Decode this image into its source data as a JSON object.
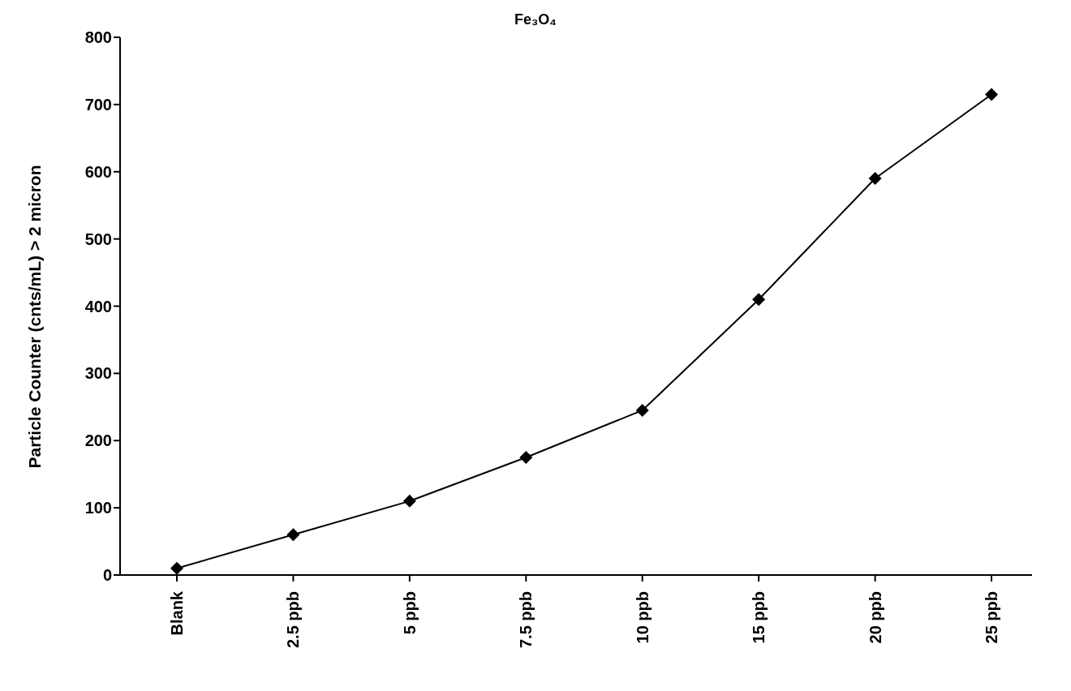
{
  "chart_data": {
    "type": "line",
    "title": "Fe₃O₄",
    "ylabel": "Particle Counter (cnts/mL) > 2 micron",
    "categories": [
      "Blank",
      "2.5 ppb",
      "5 ppb",
      "7.5 ppb",
      "10 ppb",
      "15 ppb",
      "20 ppb",
      "25 ppb"
    ],
    "values": [
      10,
      60,
      110,
      175,
      245,
      410,
      590,
      715
    ],
    "color": "#000000",
    "ylim": [
      0,
      800
    ],
    "yticks": [
      0,
      100,
      200,
      300,
      400,
      500,
      600,
      700,
      800
    ],
    "grid": false,
    "marker": "diamond",
    "line_style": "solid"
  }
}
